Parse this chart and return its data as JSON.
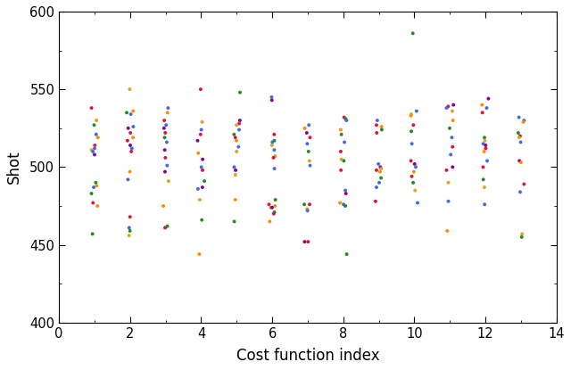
{
  "title": "",
  "xlabel": "Cost function index",
  "ylabel": "Shot",
  "xlim": [
    0,
    14
  ],
  "ylim": [
    400,
    600
  ],
  "xticks": [
    0,
    2,
    4,
    6,
    8,
    10,
    12,
    14
  ],
  "yticks": [
    400,
    450,
    500,
    550,
    600
  ],
  "colors": [
    "#4169E1",
    "#DC143C",
    "#228B22",
    "#DAA520",
    "#FF8C00",
    "#8B008B"
  ],
  "scatter_data": {
    "x_groups": [
      1,
      2,
      3,
      4,
      5,
      6,
      7,
      8,
      9,
      10,
      11,
      12,
      13
    ],
    "y_vals": {
      "1": [
        538,
        530,
        527,
        521,
        519,
        514,
        512,
        511,
        510,
        508,
        490,
        488,
        487,
        483,
        477,
        475,
        457
      ],
      "2": [
        550,
        536,
        535,
        534,
        526,
        525,
        522,
        519,
        517,
        514,
        512,
        510,
        497,
        492,
        468,
        461,
        459,
        456
      ],
      "3": [
        538,
        535,
        530,
        527,
        525,
        522,
        519,
        516,
        511,
        506,
        501,
        497,
        491,
        475,
        462,
        461
      ],
      "4": [
        550,
        529,
        524,
        521,
        517,
        509,
        505,
        500,
        498,
        491,
        487,
        486,
        479,
        466,
        444
      ],
      "5": [
        548,
        530,
        528,
        527,
        524,
        521,
        519,
        517,
        513,
        510,
        500,
        498,
        495,
        479,
        465
      ],
      "6": [
        545,
        543,
        521,
        517,
        516,
        514,
        511,
        507,
        506,
        499,
        479,
        476,
        475,
        474,
        474,
        471,
        470,
        465
      ],
      "7": [
        527,
        525,
        522,
        519,
        515,
        510,
        504,
        501,
        476,
        476,
        473,
        472,
        452,
        452
      ],
      "8": [
        532,
        531,
        530,
        524,
        521,
        516,
        510,
        505,
        504,
        498,
        485,
        483,
        477,
        476,
        475,
        444
      ],
      "9": [
        530,
        527,
        526,
        524,
        522,
        502,
        500,
        499,
        498,
        497,
        493,
        490,
        487,
        478
      ],
      "10": [
        586,
        536,
        534,
        533,
        527,
        523,
        515,
        504,
        502,
        500,
        497,
        494,
        490,
        485,
        477
      ],
      "11": [
        540,
        539,
        538,
        536,
        530,
        525,
        519,
        513,
        508,
        500,
        498,
        490,
        478,
        459
      ],
      "12": [
        544,
        540,
        538,
        535,
        519,
        517,
        515,
        514,
        512,
        510,
        504,
        500,
        492,
        487,
        476
      ],
      "13": [
        532,
        530,
        529,
        522,
        520,
        519,
        516,
        504,
        503,
        489,
        484,
        457,
        455
      ]
    },
    "c_vals": {
      "1": [
        "#DC143C",
        "#FF8C00",
        "#228B22",
        "#4169E1",
        "#FF8C00",
        "#DC143C",
        "#4169E1",
        "#DAA520",
        "#4169E1",
        "#8B008B",
        "#228B22",
        "#FF8C00",
        "#4169E1",
        "#228B22",
        "#DC143C",
        "#FF8C00",
        "#228B22"
      ],
      "2": [
        "#DAA520",
        "#FF8C00",
        "#228B22",
        "#4169E1",
        "#4169E1",
        "#8B008B",
        "#DC143C",
        "#FF8C00",
        "#DC143C",
        "#8B008B",
        "#4169E1",
        "#DC143C",
        "#FF8C00",
        "#4169E1",
        "#DC143C",
        "#4169E1",
        "#228B22",
        "#DAA520"
      ],
      "3": [
        "#4169E1",
        "#FF8C00",
        "#DC143C",
        "#4169E1",
        "#8B008B",
        "#DC143C",
        "#228B22",
        "#4169E1",
        "#8B008B",
        "#DC143C",
        "#4169E1",
        "#8B008B",
        "#DAA520",
        "#FF8C00",
        "#228B22",
        "#DC143C"
      ],
      "4": [
        "#DC143C",
        "#DAA520",
        "#4169E1",
        "#DC143C",
        "#8B008B",
        "#FF8C00",
        "#8B008B",
        "#4169E1",
        "#DC143C",
        "#228B22",
        "#8B008B",
        "#4169E1",
        "#DAA520",
        "#228B22",
        "#FF8C00"
      ],
      "5": [
        "#228B22",
        "#8B008B",
        "#DC143C",
        "#DAA520",
        "#4169E1",
        "#228B22",
        "#DC143C",
        "#FF8C00",
        "#4169E1",
        "#DAA520",
        "#4169E1",
        "#8B008B",
        "#DAA520",
        "#FF8C00",
        "#228B22"
      ],
      "6": [
        "#4169E1",
        "#8B008B",
        "#DC143C",
        "#228B22",
        "#4169E1",
        "#DAA520",
        "#4169E1",
        "#FF8C00",
        "#DC143C",
        "#4169E1",
        "#228B22",
        "#DC143C",
        "#FF8C00",
        "#DAA520",
        "#8B008B",
        "#228B22",
        "#DC143C",
        "#FF8C00"
      ],
      "7": [
        "#4169E1",
        "#FF8C00",
        "#8B008B",
        "#DC143C",
        "#4169E1",
        "#228B22",
        "#DAA520",
        "#4169E1",
        "#DC143C",
        "#228B22",
        "#FF8C00",
        "#4169E1",
        "#8B008B",
        "#DC143C"
      ],
      "8": [
        "#DC143C",
        "#228B22",
        "#4169E1",
        "#FF8C00",
        "#228B22",
        "#4169E1",
        "#DC143C",
        "#DAA520",
        "#228B22",
        "#DC143C",
        "#4169E1",
        "#8B008B",
        "#FF8C00",
        "#4169E1",
        "#228B22",
        "#228B22"
      ],
      "9": [
        "#4169E1",
        "#DC143C",
        "#FF8C00",
        "#228B22",
        "#DC143C",
        "#4169E1",
        "#8B008B",
        "#DAA520",
        "#DC143C",
        "#FF8C00",
        "#228B22",
        "#4169E1",
        "#4169E1",
        "#DC143C"
      ],
      "10": [
        "#228B22",
        "#4169E1",
        "#DAA520",
        "#FF8C00",
        "#DC143C",
        "#228B22",
        "#4169E1",
        "#DC143C",
        "#8B008B",
        "#4169E1",
        "#FF8C00",
        "#DC143C",
        "#228B22",
        "#DAA520",
        "#4169E1"
      ],
      "11": [
        "#8B008B",
        "#DC143C",
        "#4169E1",
        "#DAA520",
        "#FF8C00",
        "#228B22",
        "#4169E1",
        "#DC143C",
        "#4169E1",
        "#8B008B",
        "#DC143C",
        "#DAA520",
        "#4169E1",
        "#FF8C00"
      ],
      "12": [
        "#8B008B",
        "#FF8C00",
        "#4169E1",
        "#DC143C",
        "#228B22",
        "#DAA520",
        "#4169E1",
        "#8B008B",
        "#DC143C",
        "#FF8C00",
        "#4169E1",
        "#DC143C",
        "#228B22",
        "#DAA520",
        "#4169E1"
      ],
      "13": [
        "#4169E1",
        "#4169E1",
        "#FF8C00",
        "#228B22",
        "#DC143C",
        "#DAA520",
        "#4169E1",
        "#8B008B",
        "#FF8C00",
        "#DC143C",
        "#4169E1",
        "#DAA520",
        "#228B22"
      ]
    }
  },
  "dot_size": 8,
  "jitter_scale": 0.1,
  "figsize": [
    6.4,
    4.15
  ],
  "dpi": 100
}
